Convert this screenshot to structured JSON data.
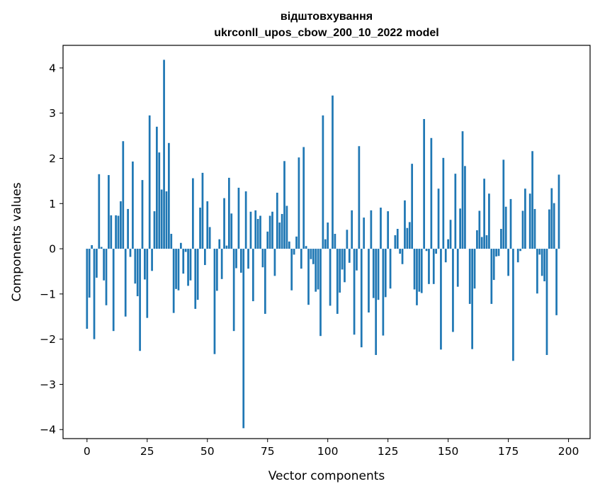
{
  "chart_data": {
    "type": "bar",
    "title_line1": "відштовхування",
    "title_line2": "ukrconll_upos_cbow_200_10_2022 model",
    "xlabel": "Vector components",
    "ylabel": "Components values",
    "xlim": [
      -9.95,
      208.95
    ],
    "ylim": [
      -4.2,
      4.5
    ],
    "xticks": [
      0,
      25,
      50,
      75,
      100,
      125,
      150,
      175,
      200
    ],
    "xtick_labels": [
      "0",
      "25",
      "50",
      "75",
      "100",
      "125",
      "150",
      "175",
      "200"
    ],
    "yticks": [
      -4,
      -3,
      -2,
      -1,
      0,
      1,
      2,
      3,
      4
    ],
    "ytick_labels": [
      "−4",
      "−3",
      "−2",
      "−1",
      "0",
      "1",
      "2",
      "3",
      "4"
    ],
    "bar_color": "#1f77b4",
    "grid": false,
    "values": [
      -1.77,
      -1.08,
      0.08,
      -2.0,
      -0.64,
      1.65,
      0.04,
      -0.7,
      -1.25,
      1.63,
      0.74,
      -1.82,
      0.74,
      0.73,
      1.05,
      2.38,
      -1.5,
      0.88,
      -0.18,
      1.93,
      -0.77,
      -1.05,
      -2.26,
      1.52,
      -0.68,
      -1.53,
      2.95,
      -0.49,
      0.83,
      2.7,
      2.13,
      1.31,
      4.18,
      1.27,
      2.34,
      0.33,
      -1.42,
      -0.89,
      -0.92,
      0.13,
      -0.55,
      -0.07,
      -0.82,
      -0.7,
      1.56,
      -1.33,
      -1.13,
      0.91,
      1.68,
      -0.36,
      1.05,
      0.48,
      0.0,
      -2.33,
      -0.93,
      0.21,
      -0.67,
      1.12,
      0.07,
      1.57,
      0.78,
      -1.82,
      -0.43,
      1.35,
      -0.53,
      -3.97,
      1.27,
      -0.44,
      0.82,
      -1.16,
      0.85,
      0.66,
      0.73,
      -0.41,
      -1.44,
      0.38,
      0.73,
      0.82,
      -0.6,
      1.24,
      0.58,
      0.77,
      1.94,
      0.95,
      0.16,
      -0.92,
      -0.13,
      0.27,
      2.02,
      -0.44,
      2.25,
      0.06,
      -1.24,
      -0.23,
      -0.34,
      -0.95,
      -0.9,
      -1.93,
      2.95,
      0.21,
      0.58,
      -1.26,
      3.39,
      0.33,
      -1.44,
      -0.97,
      -0.46,
      -0.74,
      0.42,
      -0.31,
      0.85,
      -1.9,
      -0.48,
      2.27,
      -2.18,
      0.69,
      0.0,
      -1.41,
      0.85,
      -1.09,
      -2.35,
      -1.13,
      0.91,
      -1.92,
      -1.07,
      0.83,
      -0.88,
      0.0,
      0.3,
      0.44,
      -0.11,
      -0.34,
      1.07,
      0.46,
      0.59,
      1.88,
      -0.9,
      -1.25,
      -0.95,
      -0.98,
      2.87,
      -0.05,
      -0.78,
      2.45,
      -0.78,
      -0.11,
      1.33,
      -2.23,
      2.01,
      -0.3,
      0.21,
      0.64,
      -1.84,
      1.66,
      -0.84,
      0.89,
      2.6,
      1.83,
      0.0,
      -1.22,
      -2.22,
      -0.88,
      0.41,
      0.84,
      0.26,
      1.55,
      0.3,
      1.22,
      -1.22,
      -0.69,
      -0.17,
      -0.16,
      0.44,
      1.97,
      0.93,
      -0.6,
      1.1,
      -2.48,
      0.0,
      -0.3,
      -0.05,
      0.84,
      1.33,
      0.0,
      1.22,
      2.16,
      0.88,
      -0.99,
      -0.13,
      -0.6,
      -0.72,
      -2.35,
      0.87,
      1.34,
      1.01,
      -1.47,
      1.64
    ]
  }
}
